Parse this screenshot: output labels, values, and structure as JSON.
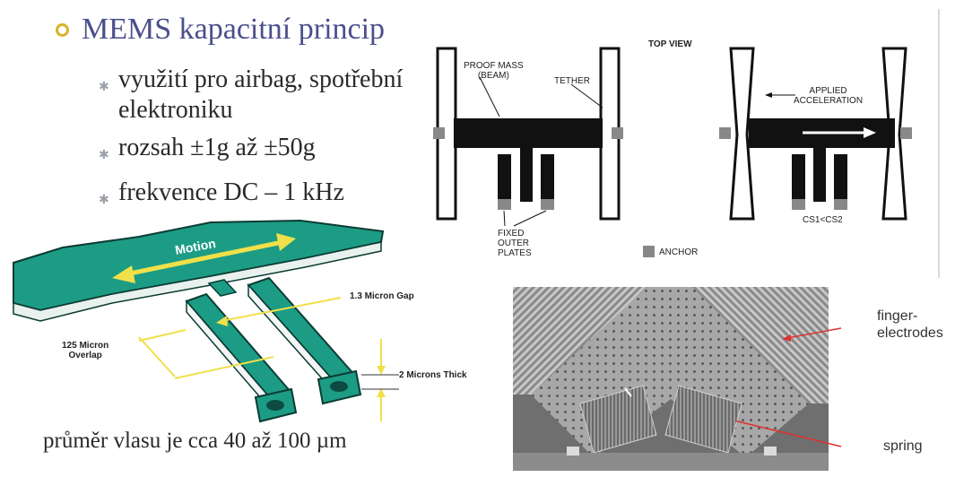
{
  "slide": {
    "heading": "MEMS kapacitní princip",
    "bullets": [
      "využití pro airbag, spotřební elektroniku",
      "rozsah ±1g až ±50g",
      "frekvence DC – 1 kHz"
    ],
    "caption": "průměr vlasu je cca 40 až 100 µm",
    "colors": {
      "heading": "#4a4f8c",
      "ring": "#d8b327",
      "teal": "#1c9c84",
      "arrow": "#f0e04a"
    }
  },
  "top_view": {
    "title": "TOP VIEW",
    "proof_mass": "PROOF MASS\n(BEAM)",
    "tether": "TETHER",
    "fixed_plates": "FIXED\nOUTER\nPLATES",
    "applied_acceleration": "APPLIED\nACCELERATION",
    "cs_relation": "CS1<CS2",
    "anchor": "ANCHOR"
  },
  "iso_diagram": {
    "motion": "Motion",
    "gap": "1.3 Micron Gap",
    "overlap": "125 Micron\nOverlap",
    "thick": "2 Microns Thick"
  },
  "photo": {
    "finger_electrodes": "finger-\nelectrodes",
    "spring": "spring"
  }
}
